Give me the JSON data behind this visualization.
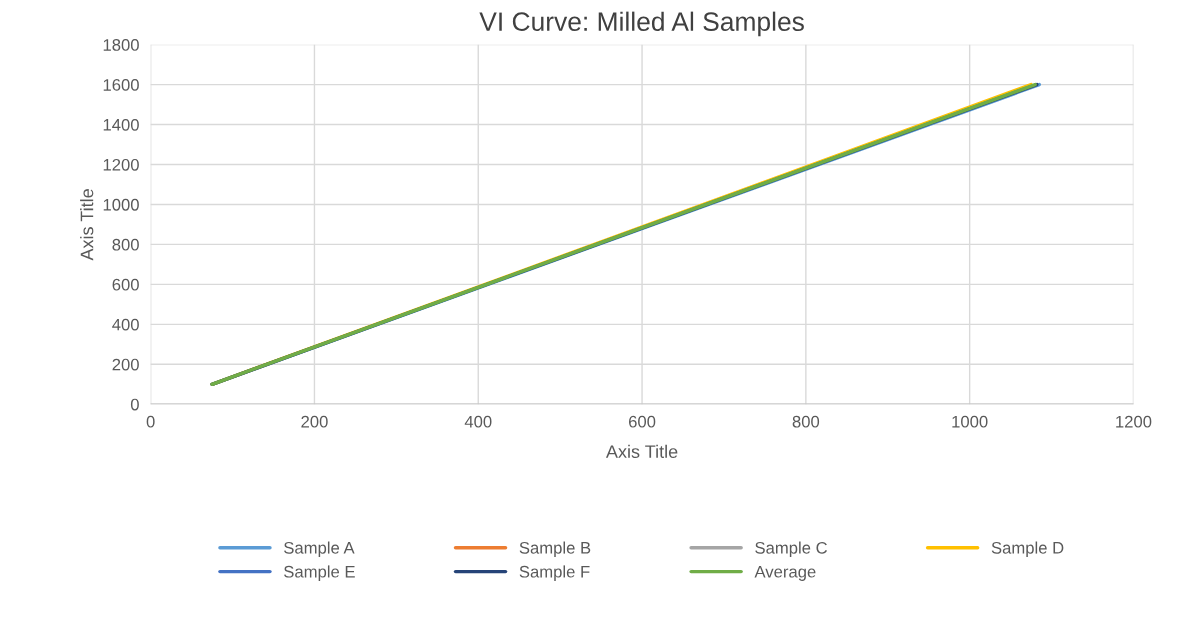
{
  "chart_data": {
    "type": "line",
    "title": "VI Curve: Milled Al Samples",
    "xlabel": "Axis Title",
    "ylabel": "Axis Title",
    "xlim": [
      0,
      1200
    ],
    "xticks": [
      0,
      200,
      400,
      600,
      800,
      1000,
      1200
    ],
    "ylim": [
      0,
      1800
    ],
    "yticks": [
      0,
      200,
      400,
      600,
      800,
      1000,
      1200,
      1400,
      1600,
      1800
    ],
    "grid": true,
    "legend": "bottom",
    "marker": "none",
    "line_style": "solid",
    "series": [
      {
        "name": "Sample A",
        "color": "#5b9bd5",
        "x": [
          75,
          1085
        ],
        "values": [
          100,
          1600
        ]
      },
      {
        "name": "Sample B",
        "color": "#ed7d31",
        "x": [
          null,
          null
        ],
        "values": [
          null,
          null
        ]
      },
      {
        "name": "Sample C",
        "color": "#a5a5a5",
        "x": [
          null,
          null
        ],
        "values": [
          null,
          null
        ]
      },
      {
        "name": "Sample D",
        "color": "#ffc000",
        "x": [
          75,
          1075
        ],
        "values": [
          100,
          1600
        ]
      },
      {
        "name": "Sample E",
        "color": "#4472c4",
        "x": [
          null,
          null
        ],
        "values": [
          null,
          null
        ]
      },
      {
        "name": "Sample F",
        "color": "#264478",
        "x": [
          75,
          1082
        ],
        "values": [
          100,
          1600
        ]
      },
      {
        "name": "Average",
        "color": "#70ad47",
        "x": [
          75,
          1080
        ],
        "values": [
          100,
          1600
        ]
      }
    ]
  }
}
